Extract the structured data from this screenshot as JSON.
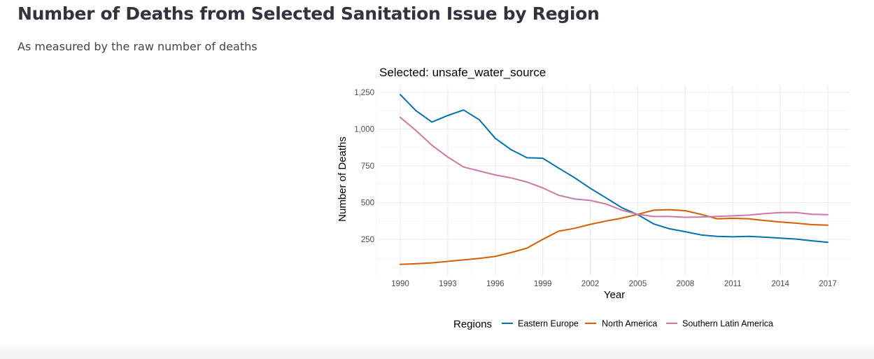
{
  "page": {
    "title": "Number of Deaths from Selected Sanitation Issue by Region",
    "subtitle": "As measured by the raw number of deaths"
  },
  "chart_data": {
    "type": "line",
    "title": "Selected: unsafe_water_source",
    "xlabel": "Year",
    "ylabel": "Number of Deaths",
    "xlim": [
      1990,
      2017
    ],
    "ylim": [
      80,
      1250
    ],
    "x_ticks": [
      1990,
      1993,
      1996,
      1999,
      2002,
      2005,
      2008,
      2011,
      2014,
      2017
    ],
    "y_ticks": [
      250,
      500,
      750,
      1000,
      1250
    ],
    "y_tick_labels": [
      "250",
      "500",
      "750",
      "1,000",
      "1,250"
    ],
    "grid": true,
    "legend_title": "Regions",
    "legend_position": "bottom",
    "x": [
      1990,
      1991,
      1992,
      1993,
      1994,
      1995,
      1996,
      1997,
      1998,
      1999,
      2000,
      2001,
      2002,
      2003,
      2004,
      2005,
      2006,
      2007,
      2008,
      2009,
      2010,
      2011,
      2012,
      2013,
      2014,
      2015,
      2016,
      2017
    ],
    "series": [
      {
        "name": "Eastern Europe",
        "color": "#0072b2",
        "values": [
          1235,
          1125,
          1048,
          1093,
          1130,
          1063,
          937,
          860,
          805,
          802,
          735,
          670,
          597,
          532,
          465,
          418,
          355,
          322,
          302,
          280,
          270,
          267,
          270,
          265,
          258,
          252,
          240,
          230
        ]
      },
      {
        "name": "North America",
        "color": "#d55e00",
        "values": [
          80,
          84,
          90,
          100,
          110,
          120,
          134,
          160,
          190,
          250,
          305,
          325,
          352,
          375,
          395,
          420,
          448,
          452,
          445,
          420,
          390,
          393,
          390,
          378,
          368,
          360,
          350,
          346
        ]
      },
      {
        "name": "Southern Latin America",
        "color": "#cc79a7",
        "values": [
          1080,
          990,
          890,
          810,
          742,
          715,
          688,
          668,
          640,
          600,
          550,
          525,
          515,
          490,
          448,
          420,
          405,
          405,
          400,
          402,
          406,
          410,
          415,
          425,
          432,
          433,
          420,
          418
        ]
      }
    ]
  }
}
